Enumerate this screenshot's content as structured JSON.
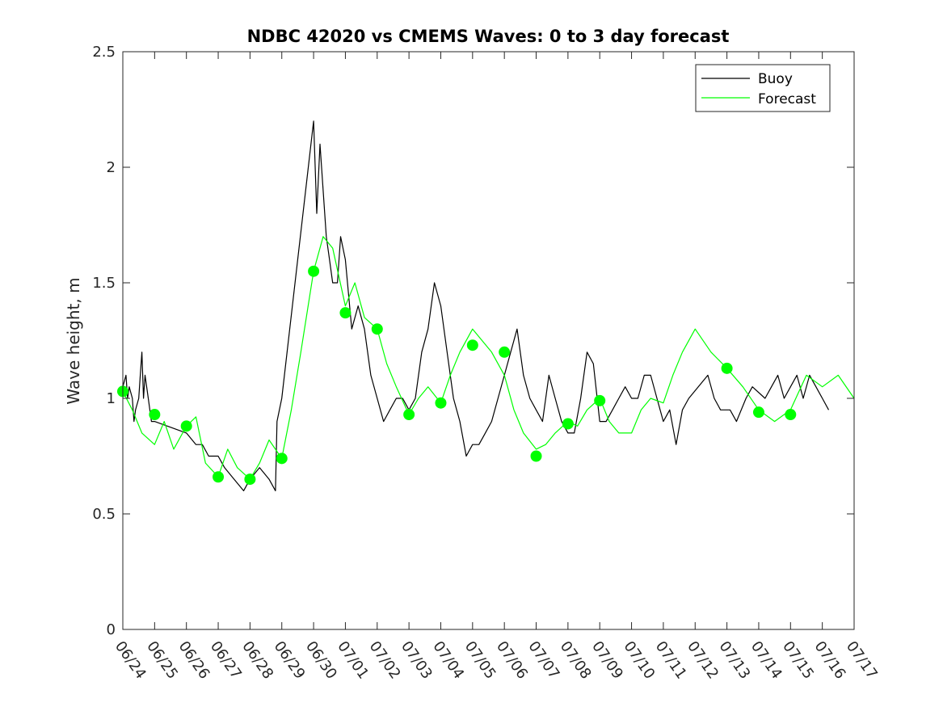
{
  "chart_data": {
    "type": "line",
    "title": "NDBC 42020 vs CMEMS Waves: 0 to 3 day forecast",
    "xlabel": "",
    "ylabel": "Wave height, m",
    "xlim": [
      0,
      23
    ],
    "ylim": [
      0,
      2.5
    ],
    "x_ticks": [
      "06/24",
      "06/25",
      "06/26",
      "06/27",
      "06/28",
      "06/29",
      "06/30",
      "07/01",
      "07/02",
      "07/03",
      "07/04",
      "07/05",
      "07/06",
      "07/07",
      "07/08",
      "07/09",
      "07/10",
      "07/11",
      "07/12",
      "07/13",
      "07/14",
      "07/15",
      "07/16",
      "07/17"
    ],
    "y_ticks": [
      {
        "value": 0,
        "label": "0"
      },
      {
        "value": 0.5,
        "label": "0.5"
      },
      {
        "value": 1,
        "label": "1"
      },
      {
        "value": 1.5,
        "label": "1.5"
      },
      {
        "value": 2,
        "label": "2"
      },
      {
        "value": 2.5,
        "label": "2.5"
      }
    ],
    "grid": false,
    "legend_placement": "top-right",
    "colors": {
      "buoy": "#000000",
      "forecast": "#00ff00"
    },
    "series": [
      {
        "name": "Buoy",
        "x": [
          0,
          0.1,
          0.15,
          0.2,
          0.3,
          0.35,
          0.4,
          0.5,
          0.55,
          0.6,
          0.65,
          0.7,
          0.8,
          0.9,
          1,
          2,
          2.3,
          2.5,
          2.7,
          3,
          3.2,
          3.5,
          3.8,
          4,
          4.3,
          4.6,
          4.8,
          4.85,
          5,
          6,
          6.1,
          6.2,
          6.3,
          6.4,
          6.5,
          6.6,
          6.75,
          6.85,
          7,
          7.2,
          7.4,
          7.6,
          7.8,
          8,
          8.2,
          8.4,
          8.6,
          8.8,
          9,
          9.2,
          9.4,
          9.6,
          9.8,
          10,
          10.2,
          10.4,
          10.6,
          10.8,
          11,
          11.2,
          11.4,
          11.6,
          11.8,
          12,
          12.2,
          12.4,
          12.6,
          12.8,
          13,
          13.2,
          13.4,
          13.6,
          13.8,
          14,
          14.2,
          14.4,
          14.6,
          14.8,
          15,
          15.2,
          15.4,
          15.6,
          15.8,
          16,
          16.2,
          16.4,
          16.6,
          16.8,
          17,
          17.2,
          17.4,
          17.6,
          17.8,
          18.4,
          18.6,
          18.8,
          19.1,
          19.3,
          19.6,
          19.8,
          20.2,
          20.4,
          20.6,
          20.8,
          21,
          21.2,
          21.4,
          21.6,
          21.8,
          22,
          22.2
        ],
        "y": [
          1.05,
          1.1,
          1.0,
          1.05,
          1.0,
          0.9,
          0.95,
          1.0,
          1.1,
          1.2,
          1.0,
          1.1,
          1.0,
          0.9,
          0.9,
          0.85,
          0.8,
          0.8,
          0.75,
          0.75,
          0.7,
          0.65,
          0.6,
          0.65,
          0.7,
          0.65,
          0.6,
          0.9,
          1.0,
          2.2,
          1.8,
          2.1,
          1.9,
          1.7,
          1.6,
          1.5,
          1.5,
          1.7,
          1.6,
          1.3,
          1.4,
          1.3,
          1.1,
          1.0,
          0.9,
          0.95,
          1.0,
          1.0,
          0.95,
          1.0,
          1.2,
          1.3,
          1.5,
          1.4,
          1.2,
          1.0,
          0.9,
          0.75,
          0.8,
          0.8,
          0.85,
          0.9,
          1.0,
          1.1,
          1.2,
          1.3,
          1.1,
          1.0,
          0.95,
          0.9,
          1.1,
          1.0,
          0.9,
          0.85,
          0.85,
          1.0,
          1.2,
          1.15,
          0.9,
          0.9,
          0.95,
          1.0,
          1.05,
          1.0,
          1.0,
          1.1,
          1.1,
          1.0,
          0.9,
          0.95,
          0.8,
          0.95,
          1.0,
          1.1,
          1.0,
          0.95,
          0.95,
          0.9,
          1.0,
          1.05,
          1.0,
          1.05,
          1.1,
          1.0,
          1.05,
          1.1,
          1.0,
          1.1,
          1.05,
          1.0,
          0.95
        ]
      },
      {
        "name": "Forecast",
        "x": [
          0,
          0.3,
          0.6,
          1,
          1.3,
          1.6,
          2,
          2.3,
          2.6,
          3,
          3.3,
          3.6,
          4,
          4.3,
          4.6,
          5,
          5.3,
          5.6,
          6,
          6.3,
          6.6,
          7,
          7.3,
          7.6,
          8,
          8.3,
          8.6,
          9,
          9.3,
          9.6,
          10,
          10.3,
          10.6,
          11,
          11.3,
          11.6,
          12,
          12.3,
          12.6,
          13,
          13.3,
          13.6,
          14,
          14.3,
          14.6,
          15,
          15.3,
          15.6,
          16,
          16.3,
          16.6,
          17,
          17.3,
          17.6,
          18,
          18.5,
          19,
          19.5,
          20,
          20.5,
          21,
          21.5,
          22,
          22.5,
          23
        ],
        "y": [
          1.03,
          0.95,
          0.85,
          0.8,
          0.9,
          0.78,
          0.88,
          0.92,
          0.72,
          0.66,
          0.78,
          0.7,
          0.65,
          0.72,
          0.82,
          0.74,
          0.95,
          1.2,
          1.55,
          1.7,
          1.65,
          1.4,
          1.5,
          1.35,
          1.3,
          1.15,
          1.05,
          0.93,
          1.0,
          1.05,
          0.98,
          1.1,
          1.2,
          1.3,
          1.25,
          1.2,
          1.1,
          0.95,
          0.85,
          0.78,
          0.8,
          0.85,
          0.9,
          0.88,
          0.95,
          1.0,
          0.9,
          0.85,
          0.85,
          0.95,
          1.0,
          0.98,
          1.1,
          1.2,
          1.3,
          1.2,
          1.13,
          1.05,
          0.95,
          0.9,
          0.95,
          1.1,
          1.05,
          1.1,
          1.0
        ]
      }
    ],
    "forecast_markers": {
      "x": [
        0,
        1,
        2,
        3,
        4,
        5,
        6,
        7,
        8,
        9,
        10,
        11,
        12,
        13,
        14,
        15,
        19,
        20,
        21
      ],
      "y": [
        1.03,
        0.93,
        0.88,
        0.66,
        0.65,
        0.74,
        1.55,
        1.37,
        1.3,
        0.93,
        0.98,
        1.23,
        1.2,
        0.75,
        0.89,
        0.99,
        1.13,
        0.94,
        0.93
      ]
    }
  }
}
